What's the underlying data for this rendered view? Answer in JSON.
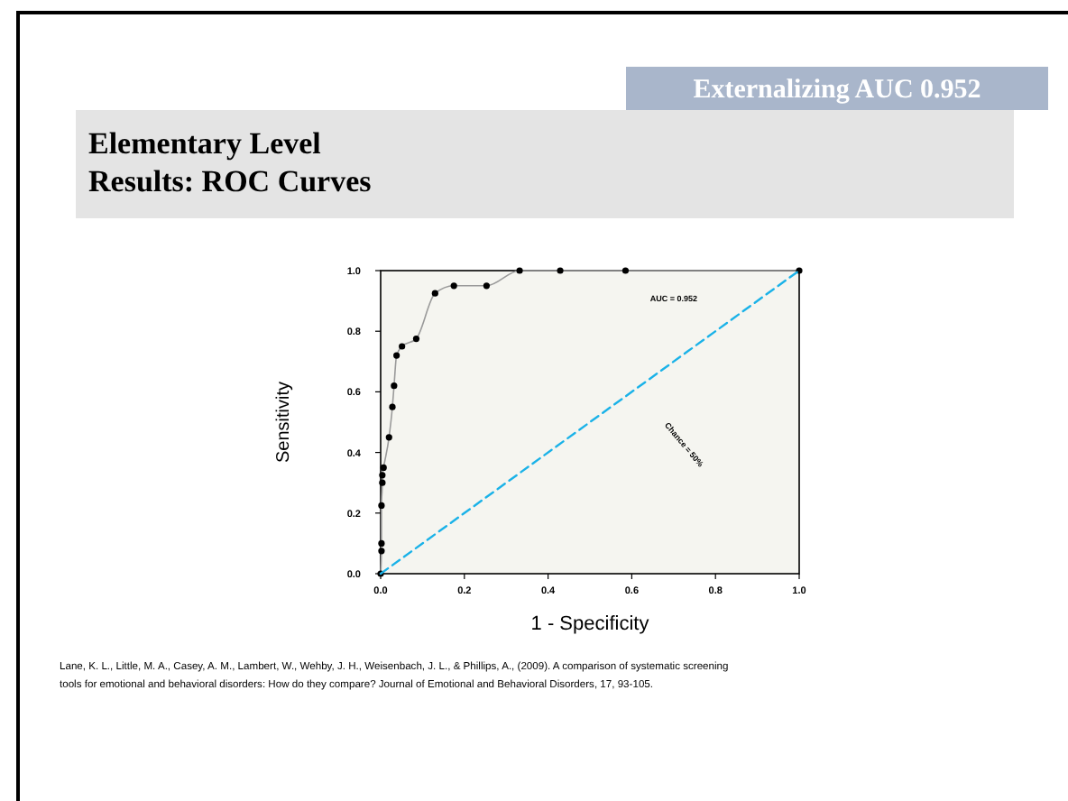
{
  "chart_data": {
    "type": "line",
    "title": "Externalizing AUC 0.952",
    "subtitle": "Elementary Level\nResults: ROC Curves",
    "xlabel": "1 - Specificity",
    "ylabel": "Sensitivity",
    "xlim": [
      0,
      1
    ],
    "ylim": [
      0,
      1
    ],
    "xticks": [
      {
        "value": 0,
        "label": "0.0"
      },
      0.2,
      0.4,
      0.6,
      0.8,
      {
        "value": 1,
        "label": "1.0"
      }
    ],
    "yticks": [
      {
        "value": 0,
        "label": "0.0"
      },
      0.2,
      0.4,
      0.6,
      0.8,
      {
        "value": 1,
        "label": "1.0"
      }
    ],
    "grid": false,
    "series": [
      {
        "color": "#9a9a9a",
        "marker": "circle",
        "line_style": "solid",
        "x": [
          0,
          0.002,
          0.002,
          0.002,
          0.004,
          0.004,
          0.007,
          0.02,
          0.028,
          0.032,
          0.038,
          0.051,
          0.085,
          0.13,
          0.175,
          0.253,
          0.332,
          0.429,
          0.585,
          1
        ],
        "values": [
          0,
          0.075,
          0.1,
          0.225,
          0.3,
          0.325,
          0.35,
          0.45,
          0.55,
          0.62,
          0.72,
          0.75,
          0.775,
          0.925,
          0.95,
          0.95,
          1,
          1,
          1,
          1
        ]
      },
      {
        "name": "Chance = 50%",
        "color": "#1ab2e8",
        "marker": "none",
        "line_style": "dashed",
        "x": [
          0,
          1
        ],
        "values": [
          0,
          1
        ]
      }
    ],
    "annotations": [
      "AUC = 0.952",
      "Lane, K. L., Little, M. A., Casey, A. M., Lambert, W., Wehby, J. H., Weisenbach, J. L., & Phillips, A., (2009).  A comparison of systematic screening tools for emotional and behavioral disorders: How do they compare? Journal of Emotional and Behavioral Disorders, 17, 93-105."
    ]
  }
}
